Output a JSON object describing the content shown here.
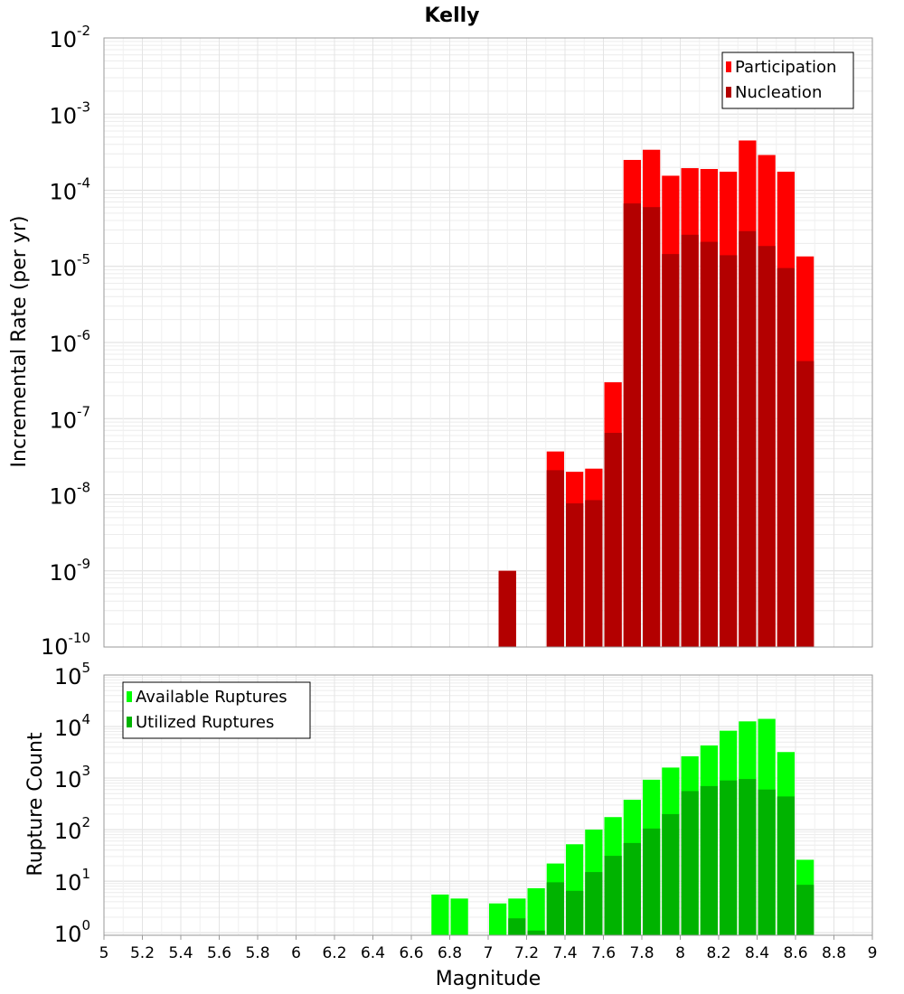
{
  "chart_data": {
    "type": "bar",
    "title": "Kelly",
    "xlabel": "Magnitude",
    "x_ticks": [
      "5",
      "5.2",
      "5.4",
      "5.6",
      "5.8",
      "6",
      "6.2",
      "6.4",
      "6.6",
      "6.8",
      "7",
      "7.2",
      "7.4",
      "7.6",
      "7.8",
      "8",
      "8.2",
      "8.4",
      "8.6",
      "8.8",
      "9"
    ],
    "xlim": [
      5,
      9
    ],
    "bin_width": 0.1,
    "panels": [
      {
        "id": "rates",
        "ylabel": "Incremental Rate (per yr)",
        "yscale": "log",
        "ylim_exp": [
          -10,
          -2
        ],
        "y_ticks": [
          {
            "base": "10",
            "exp": "-2"
          },
          {
            "base": "10",
            "exp": "-3"
          },
          {
            "base": "10",
            "exp": "-4"
          },
          {
            "base": "10",
            "exp": "-5"
          },
          {
            "base": "10",
            "exp": "-6"
          },
          {
            "base": "10",
            "exp": "-7"
          },
          {
            "base": "10",
            "exp": "-8"
          },
          {
            "base": "10",
            "exp": "-9"
          },
          {
            "base": "10",
            "exp": "-10"
          }
        ],
        "legend_position": "top-right",
        "series": [
          {
            "name": "Participation",
            "color": "#ff0000",
            "x": [
              7.1,
              7.35,
              7.45,
              7.55,
              7.65,
              7.75,
              7.85,
              7.95,
              8.05,
              8.15,
              8.25,
              8.35,
              8.45,
              8.55,
              8.65
            ],
            "values": [
              1e-09,
              3.7e-08,
              2e-08,
              2.2e-08,
              3e-07,
              0.00025,
              0.00034,
              0.000155,
              0.000195,
              0.00019,
              0.000175,
              0.00045,
              0.00029,
              0.000175,
              1.35e-05
            ]
          },
          {
            "name": "Nucleation",
            "color": "#b30000",
            "x": [
              7.1,
              7.35,
              7.45,
              7.55,
              7.65,
              7.75,
              7.85,
              7.95,
              8.05,
              8.15,
              8.25,
              8.35,
              8.45,
              8.55,
              8.65
            ],
            "values": [
              1e-09,
              2.1e-08,
              7.7e-09,
              8.5e-09,
              6.5e-08,
              6.7e-05,
              6e-05,
              1.45e-05,
              2.6e-05,
              2.1e-05,
              1.4e-05,
              2.9e-05,
              1.85e-05,
              9.5e-06,
              5.7e-07
            ]
          }
        ]
      },
      {
        "id": "counts",
        "ylabel": "Rupture Count",
        "yscale": "log",
        "ylim_exp": [
          -0.05,
          5
        ],
        "y_ticks": [
          {
            "base": "10",
            "exp": "5"
          },
          {
            "base": "10",
            "exp": "4"
          },
          {
            "base": "10",
            "exp": "3"
          },
          {
            "base": "10",
            "exp": "2"
          },
          {
            "base": "10",
            "exp": "1"
          },
          {
            "base": "10",
            "exp": "0"
          }
        ],
        "legend_position": "top-left",
        "series": [
          {
            "name": "Available Ruptures",
            "color": "#00ff00",
            "x": [
              6.75,
              6.85,
              7.05,
              7.15,
              7.25,
              7.35,
              7.45,
              7.55,
              7.65,
              7.75,
              7.85,
              7.95,
              8.05,
              8.15,
              8.25,
              8.35,
              8.45,
              8.55,
              8.65
            ],
            "values": [
              5.5,
              4.6,
              3.7,
              4.6,
              7.3,
              22,
              52,
              100,
              175,
              380,
              930,
              1600,
              2650,
              4300,
              8300,
              12600,
              14100,
              3200,
              26
            ]
          },
          {
            "name": "Utilized Ruptures",
            "color": "#00b300",
            "x": [
              7.15,
              7.25,
              7.35,
              7.45,
              7.55,
              7.65,
              7.75,
              7.85,
              7.95,
              8.05,
              8.15,
              8.25,
              8.35,
              8.45,
              8.55,
              8.65
            ],
            "values": [
              1.9,
              1.1,
              9.5,
              6.5,
              15,
              31,
              55,
              105,
              200,
              560,
              700,
              900,
              960,
              600,
              440,
              8.5
            ]
          }
        ]
      }
    ]
  }
}
